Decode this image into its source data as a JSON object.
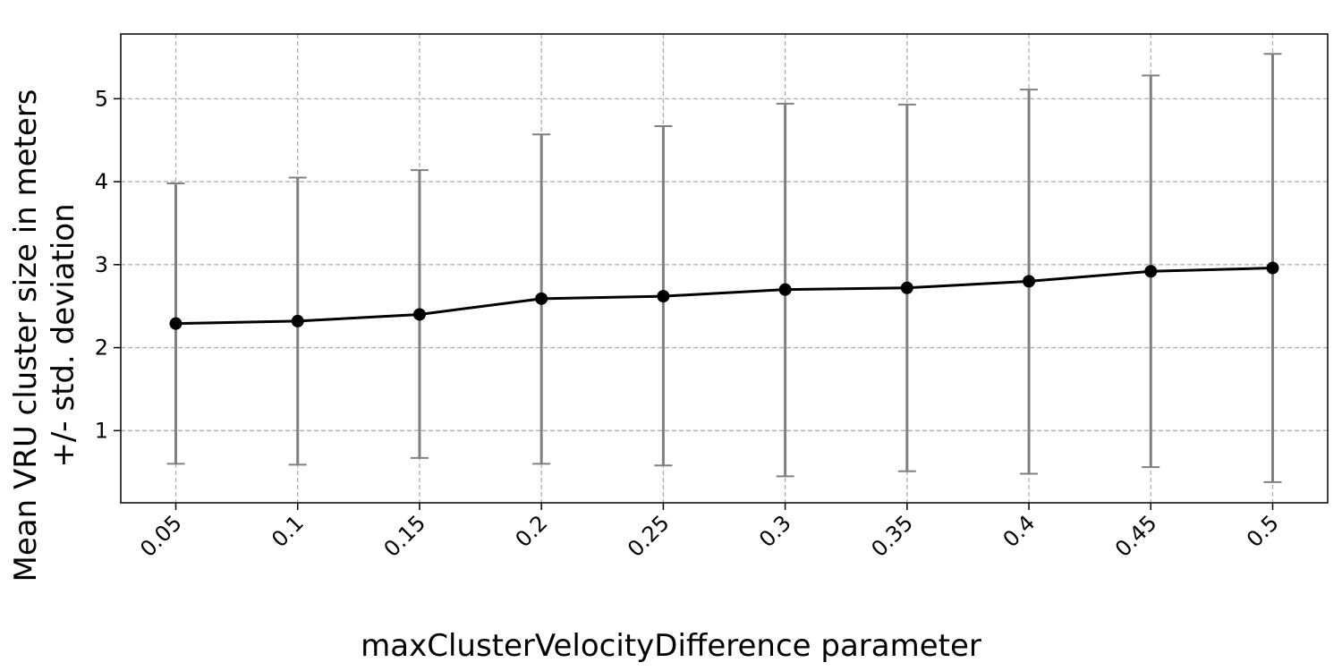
{
  "chart_data": {
    "type": "line",
    "title": "",
    "xlabel": "maxClusterVelocityDifference parameter",
    "ylabel_line1": "Mean VRU cluster size in meters",
    "ylabel_line2": "+/- std. deviation",
    "categories": [
      "0.05",
      "0.1",
      "0.15",
      "0.2",
      "0.25",
      "0.3",
      "0.35",
      "0.4",
      "0.45",
      "0.5"
    ],
    "series": [
      {
        "values": [
          2.29,
          2.32,
          2.4,
          2.59,
          2.62,
          2.7,
          2.72,
          2.8,
          2.92,
          2.96
        ],
        "error_low": [
          0.6,
          0.59,
          0.67,
          0.6,
          0.58,
          0.45,
          0.51,
          0.48,
          0.56,
          0.38
        ],
        "error_high": [
          3.98,
          4.05,
          4.14,
          4.57,
          4.67,
          4.94,
          4.93,
          5.11,
          5.28,
          5.54
        ]
      }
    ],
    "yticks": [
      1,
      2,
      3,
      4,
      5
    ],
    "ylim": [
      0.13,
      5.78
    ],
    "grid": true,
    "colors": {
      "line": "#000000",
      "errorbar": "#808080",
      "grid": "#b0b0b0"
    }
  }
}
